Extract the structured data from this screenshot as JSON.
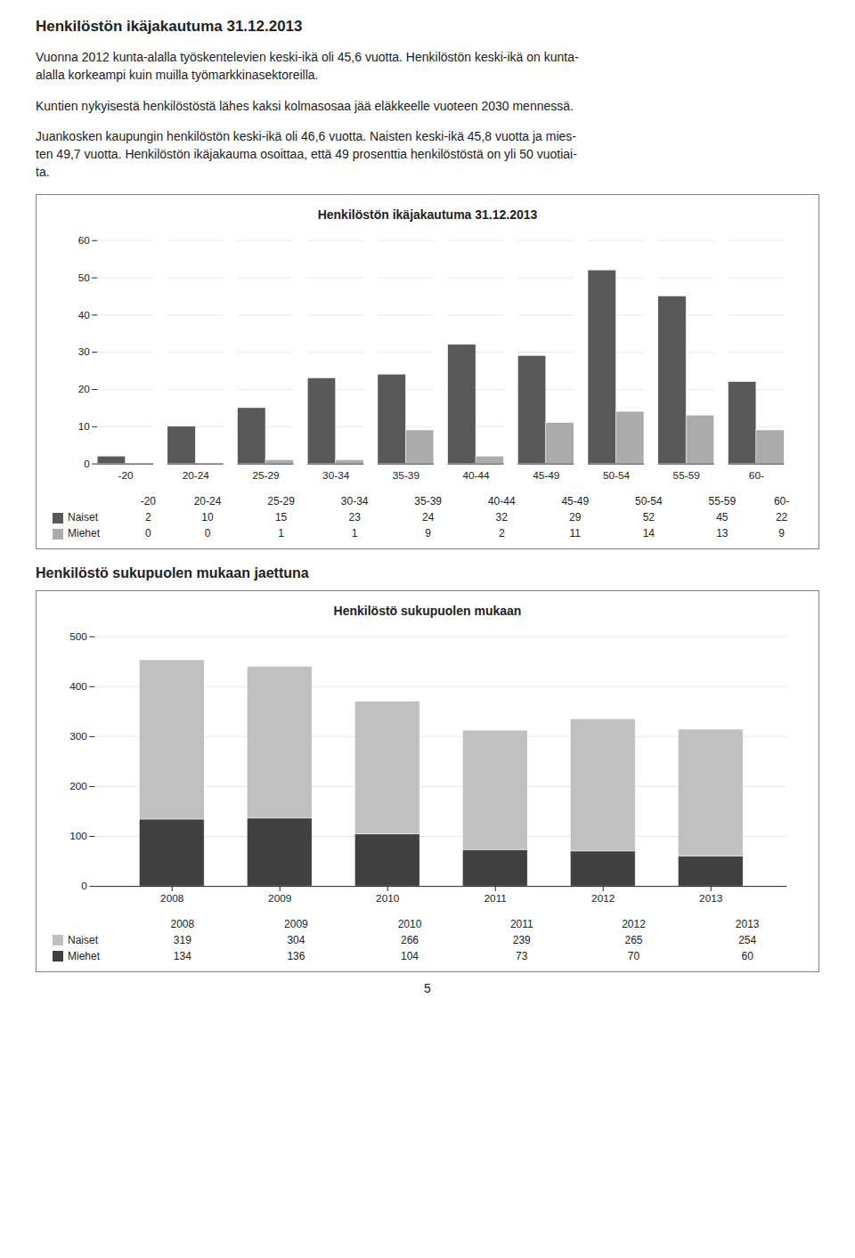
{
  "title": "Henkilöstön ikäjakautuma 31.12.2013",
  "paragraphs": [
    "Vuonna 2012 kunta-alalla työskentelevien keski-ikä oli 45,6 vuotta. Henkilöstön keski-ikä on kunta-\nalalla korkeampi kuin muilla työmarkkinasektoreilla.",
    "Kuntien nykyisestä henkilöstöstä lähes kaksi kolmasosaa jää eläkkeelle vuoteen 2030 mennessä.",
    "Juankosken kaupungin henkilöstön keski-ikä oli 46,6 vuotta. Naisten keski-ikä 45,8 vuotta ja mies-\nten 49,7 vuotta. Henkilöstön ikäjakauma osoittaa, että 49 prosenttia henkilöstöstä on yli 50 vuotiai-\nta."
  ],
  "section_title": "Henkilöstö sukupuolen mukaan jaettuna",
  "page_number": "5",
  "chart_data": [
    {
      "type": "bar",
      "title": "Henkilöstön ikäjakautuma 31.12.2013",
      "categories": [
        "-20",
        "20-24",
        "25-29",
        "30-34",
        "35-39",
        "40-44",
        "45-49",
        "50-54",
        "55-59",
        "60-"
      ],
      "series": [
        {
          "name": "Naiset",
          "color": "#595959",
          "values": [
            2,
            10,
            15,
            23,
            24,
            32,
            29,
            52,
            45,
            22
          ]
        },
        {
          "name": "Miehet",
          "color": "#ababab",
          "values": [
            0,
            0,
            1,
            1,
            9,
            2,
            11,
            14,
            13,
            9
          ]
        }
      ],
      "ylim": [
        0,
        60
      ],
      "yticks": [
        0,
        10,
        20,
        30,
        40,
        50,
        60
      ],
      "grid": true,
      "legend": "bottom"
    },
    {
      "type": "bar",
      "title": "Henkilöstö sukupuolen mukaan",
      "stacked": true,
      "categories": [
        "2008",
        "2009",
        "2010",
        "2011",
        "2012",
        "2013"
      ],
      "series": [
        {
          "name": "Miehet",
          "color": "#404040",
          "values": [
            134,
            136,
            104,
            73,
            70,
            60
          ]
        },
        {
          "name": "Naiset",
          "color": "#c0c0c0",
          "values": [
            319,
            304,
            266,
            239,
            265,
            254
          ]
        }
      ],
      "ylim": [
        0,
        500
      ],
      "yticks": [
        0,
        100,
        200,
        300,
        400,
        500
      ],
      "grid": true,
      "legend": "bottom"
    }
  ]
}
